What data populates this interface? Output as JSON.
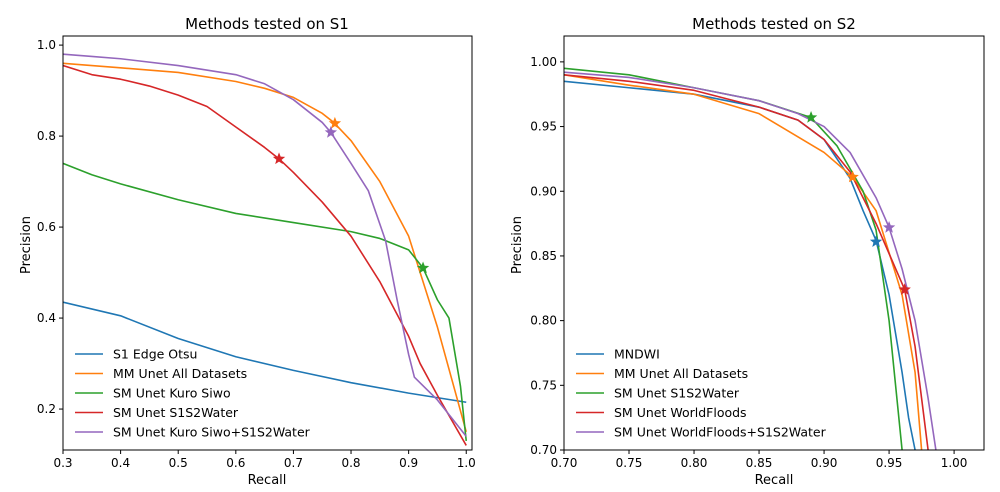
{
  "chart_data": [
    {
      "type": "line",
      "title": "Methods tested on S1",
      "xlabel": "Recall",
      "ylabel": "Precision",
      "xlim": [
        0.3,
        1.01
      ],
      "ylim": [
        0.11,
        1.02
      ],
      "xticks": [
        0.3,
        0.4,
        0.5,
        0.6,
        0.7,
        0.8,
        0.9,
        1.0
      ],
      "xtick_labels": [
        "0.3",
        "0.4",
        "0.5",
        "0.6",
        "0.7",
        "0.8",
        "0.9",
        "1.0"
      ],
      "yticks": [
        0.2,
        0.4,
        0.6,
        0.8,
        1.0
      ],
      "ytick_labels": [
        "0.2",
        "0.4",
        "0.6",
        "0.8",
        "1.0"
      ],
      "grid": false,
      "legend_position": "lower-left",
      "series": [
        {
          "name": "S1 Edge Otsu",
          "color": "#1f77b4",
          "x": [
            0.3,
            0.4,
            0.5,
            0.6,
            0.7,
            0.8,
            0.9,
            1.0
          ],
          "y": [
            0.435,
            0.405,
            0.355,
            0.315,
            0.285,
            0.258,
            0.235,
            0.215
          ],
          "marker": null
        },
        {
          "name": "MM Unet All Datasets",
          "color": "#ff7f0e",
          "x": [
            0.3,
            0.4,
            0.5,
            0.6,
            0.65,
            0.7,
            0.75,
            0.77,
            0.8,
            0.85,
            0.9,
            0.95,
            1.0
          ],
          "y": [
            0.96,
            0.95,
            0.94,
            0.92,
            0.905,
            0.885,
            0.85,
            0.83,
            0.79,
            0.7,
            0.58,
            0.38,
            0.15
          ],
          "marker": {
            "x": 0.772,
            "y": 0.828
          }
        },
        {
          "name": "SM Unet Kuro Siwo",
          "color": "#2ca02c",
          "x": [
            0.3,
            0.35,
            0.4,
            0.5,
            0.6,
            0.7,
            0.8,
            0.85,
            0.9,
            0.925,
            0.95,
            0.97,
            0.99,
            1.0
          ],
          "y": [
            0.74,
            0.715,
            0.695,
            0.66,
            0.63,
            0.61,
            0.59,
            0.575,
            0.55,
            0.51,
            0.44,
            0.4,
            0.25,
            0.13
          ],
          "marker": {
            "x": 0.925,
            "y": 0.51
          }
        },
        {
          "name": "SM Unet S1S2Water",
          "color": "#d62728",
          "x": [
            0.3,
            0.35,
            0.4,
            0.45,
            0.5,
            0.55,
            0.6,
            0.65,
            0.675,
            0.7,
            0.75,
            0.8,
            0.85,
            0.9,
            0.92,
            0.95,
            1.0
          ],
          "y": [
            0.955,
            0.935,
            0.925,
            0.91,
            0.89,
            0.865,
            0.82,
            0.775,
            0.75,
            0.72,
            0.655,
            0.58,
            0.48,
            0.36,
            0.3,
            0.23,
            0.12
          ],
          "marker": {
            "x": 0.675,
            "y": 0.75
          }
        },
        {
          "name": "SM Unet Kuro Siwo+S1S2Water",
          "color": "#9467bd",
          "x": [
            0.3,
            0.35,
            0.4,
            0.5,
            0.6,
            0.65,
            0.7,
            0.75,
            0.765,
            0.8,
            0.83,
            0.86,
            0.88,
            0.9,
            0.91,
            0.95,
            1.0
          ],
          "y": [
            0.98,
            0.975,
            0.97,
            0.955,
            0.935,
            0.915,
            0.88,
            0.83,
            0.808,
            0.74,
            0.68,
            0.57,
            0.44,
            0.32,
            0.27,
            0.22,
            0.14
          ],
          "marker": {
            "x": 0.765,
            "y": 0.808
          }
        }
      ]
    },
    {
      "type": "line",
      "title": "Methods tested on S2",
      "xlabel": "Recall",
      "ylabel": "Precision",
      "xlim": [
        0.7,
        1.023
      ],
      "ylim": [
        0.7,
        1.02
      ],
      "xticks": [
        0.7,
        0.75,
        0.8,
        0.85,
        0.9,
        0.95,
        1.0
      ],
      "xtick_labels": [
        "0.70",
        "0.75",
        "0.80",
        "0.85",
        "0.90",
        "0.95",
        "1.00"
      ],
      "yticks": [
        0.7,
        0.75,
        0.8,
        0.85,
        0.9,
        0.95,
        1.0
      ],
      "ytick_labels": [
        "0.70",
        "0.75",
        "0.80",
        "0.85",
        "0.90",
        "0.95",
        "1.00"
      ],
      "grid": false,
      "legend_position": "lower-left",
      "series": [
        {
          "name": "MNDWI",
          "color": "#1f77b4",
          "x": [
            0.7,
            0.75,
            0.8,
            0.85,
            0.88,
            0.9,
            0.92,
            0.93,
            0.94,
            0.95,
            0.96,
            0.965,
            0.97
          ],
          "y": [
            0.985,
            0.98,
            0.975,
            0.965,
            0.955,
            0.94,
            0.91,
            0.885,
            0.862,
            0.82,
            0.76,
            0.725,
            0.7
          ],
          "marker": {
            "x": 0.94,
            "y": 0.861
          }
        },
        {
          "name": "MM Unet All Datasets",
          "color": "#ff7f0e",
          "x": [
            0.7,
            0.75,
            0.8,
            0.85,
            0.9,
            0.922,
            0.94,
            0.96,
            0.97,
            0.975
          ],
          "y": [
            0.99,
            0.982,
            0.975,
            0.96,
            0.93,
            0.911,
            0.885,
            0.82,
            0.76,
            0.7
          ],
          "marker": {
            "x": 0.922,
            "y": 0.911
          }
        },
        {
          "name": "SM Unet S1S2Water",
          "color": "#2ca02c",
          "x": [
            0.7,
            0.75,
            0.8,
            0.85,
            0.89,
            0.91,
            0.93,
            0.94,
            0.95,
            0.955,
            0.96
          ],
          "y": [
            0.995,
            0.99,
            0.98,
            0.97,
            0.957,
            0.935,
            0.9,
            0.87,
            0.8,
            0.75,
            0.7
          ],
          "marker": {
            "x": 0.89,
            "y": 0.957
          }
        },
        {
          "name": "SM Unet WorldFloods",
          "color": "#d62728",
          "x": [
            0.7,
            0.75,
            0.8,
            0.85,
            0.88,
            0.9,
            0.92,
            0.94,
            0.962,
            0.97,
            0.975,
            0.98
          ],
          "y": [
            0.99,
            0.985,
            0.978,
            0.965,
            0.955,
            0.94,
            0.915,
            0.875,
            0.824,
            0.78,
            0.74,
            0.7
          ],
          "marker": {
            "x": 0.962,
            "y": 0.824
          }
        },
        {
          "name": "SM Unet WorldFloods+S1S2Water",
          "color": "#9467bd",
          "x": [
            0.7,
            0.75,
            0.8,
            0.85,
            0.88,
            0.9,
            0.92,
            0.94,
            0.95,
            0.96,
            0.97,
            0.98,
            0.986
          ],
          "y": [
            0.992,
            0.988,
            0.98,
            0.97,
            0.96,
            0.95,
            0.93,
            0.895,
            0.872,
            0.84,
            0.8,
            0.74,
            0.7
          ],
          "marker": {
            "x": 0.95,
            "y": 0.872
          }
        }
      ]
    }
  ]
}
